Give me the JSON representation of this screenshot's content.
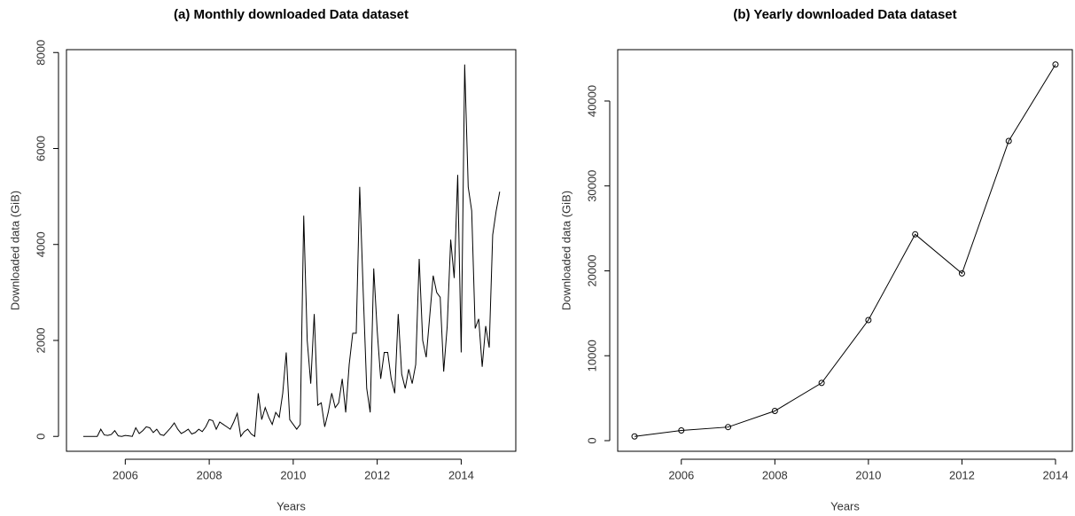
{
  "chart_data": [
    {
      "type": "line",
      "title": "(a) Monthly downloaded Data dataset",
      "x_label": "Years",
      "y_label": "Downloaded data (GiB)",
      "color": "#000000",
      "markers": false,
      "x": [
        2005,
        2005.083,
        2005.167,
        2005.25,
        2005.333,
        2005.417,
        2005.5,
        2005.583,
        2005.667,
        2005.75,
        2005.833,
        2005.917,
        2006,
        2006.083,
        2006.167,
        2006.25,
        2006.333,
        2006.417,
        2006.5,
        2006.583,
        2006.667,
        2006.75,
        2006.833,
        2006.917,
        2007,
        2007.083,
        2007.167,
        2007.25,
        2007.333,
        2007.417,
        2007.5,
        2007.583,
        2007.667,
        2007.75,
        2007.833,
        2007.917,
        2008,
        2008.083,
        2008.167,
        2008.25,
        2008.333,
        2008.417,
        2008.5,
        2008.583,
        2008.667,
        2008.75,
        2008.833,
        2008.917,
        2009,
        2009.083,
        2009.167,
        2009.25,
        2009.333,
        2009.417,
        2009.5,
        2009.583,
        2009.667,
        2009.75,
        2009.833,
        2009.917,
        2010,
        2010.083,
        2010.167,
        2010.25,
        2010.333,
        2010.417,
        2010.5,
        2010.583,
        2010.667,
        2010.75,
        2010.833,
        2010.917,
        2011,
        2011.083,
        2011.167,
        2011.25,
        2011.333,
        2011.417,
        2011.5,
        2011.583,
        2011.667,
        2011.75,
        2011.833,
        2011.917,
        2012,
        2012.083,
        2012.167,
        2012.25,
        2012.333,
        2012.417,
        2012.5,
        2012.583,
        2012.667,
        2012.75,
        2012.833,
        2012.917,
        2013,
        2013.083,
        2013.167,
        2013.25,
        2013.333,
        2013.417,
        2013.5,
        2013.583,
        2013.667,
        2013.75,
        2013.833,
        2013.917,
        2014,
        2014.083,
        2014.167,
        2014.25,
        2014.333,
        2014.417,
        2014.5,
        2014.583,
        2014.667,
        2014.75,
        2014.833,
        2014.917
      ],
      "values": [
        0,
        0,
        0,
        0,
        0,
        150,
        30,
        20,
        40,
        120,
        10,
        0,
        20,
        10,
        0,
        180,
        60,
        120,
        200,
        180,
        80,
        150,
        40,
        20,
        100,
        180,
        280,
        150,
        60,
        100,
        150,
        50,
        80,
        150,
        100,
        200,
        350,
        330,
        150,
        300,
        250,
        200,
        150,
        300,
        480,
        0,
        100,
        150,
        50,
        0,
        900,
        350,
        600,
        400,
        250,
        500,
        400,
        900,
        1750,
        350,
        250,
        150,
        250,
        4600,
        2000,
        1100,
        2550,
        650,
        700,
        200,
        500,
        900,
        600,
        700,
        1200,
        500,
        1500,
        2150,
        2150,
        5200,
        3000,
        1000,
        500,
        3500,
        2200,
        1200,
        1750,
        1750,
        1200,
        900,
        2550,
        1300,
        1000,
        1400,
        1100,
        1500,
        3700,
        2000,
        1650,
        2500,
        3350,
        3000,
        2900,
        1350,
        2300,
        4100,
        3300,
        5450,
        1750,
        7750,
        5200,
        4700,
        2250,
        2450,
        1450,
        2300,
        1850,
        4200,
        4700,
        5100
      ],
      "xlim": [
        2004.6,
        2015.3
      ],
      "ylim": [
        -310,
        8060
      ],
      "xticks": [
        2006,
        2008,
        2010,
        2012,
        2014
      ],
      "yticks": [
        0,
        2000,
        4000,
        6000,
        8000
      ]
    },
    {
      "type": "line",
      "title": "(b) Yearly downloaded Data dataset",
      "x_label": "Years",
      "y_label": "Downloaded data (GiB)",
      "color": "#000000",
      "markers": true,
      "x": [
        2005,
        2006,
        2007,
        2008,
        2009,
        2010,
        2011,
        2012,
        2013,
        2014
      ],
      "values": [
        500,
        1200,
        1600,
        3500,
        6800,
        14200,
        24300,
        19700,
        35300,
        44300
      ],
      "xlim": [
        2004.64,
        2014.36
      ],
      "ylim": [
        -1252,
        46052
      ],
      "xticks": [
        2006,
        2008,
        2010,
        2012,
        2014
      ],
      "yticks": [
        0,
        10000,
        20000,
        30000,
        40000
      ]
    }
  ]
}
